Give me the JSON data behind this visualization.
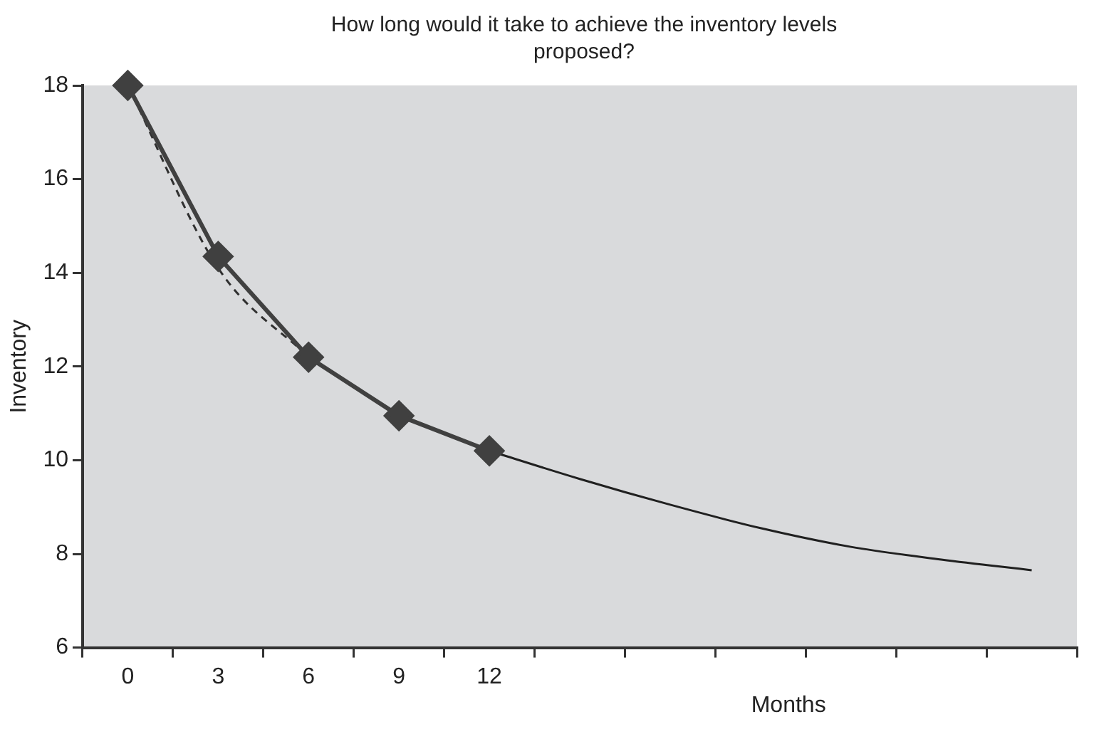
{
  "chart_data": {
    "type": "line",
    "title": "How long would it take to achieve the inventory levels proposed?",
    "xlabel": "Months",
    "ylabel": "Inventory",
    "categories": [
      "0",
      "3",
      "6",
      "9",
      "12",
      null,
      null,
      null,
      null,
      null,
      null
    ],
    "series": [
      {
        "color": "#404040",
        "marker": "diamond",
        "line_style": "solid",
        "values": [
          18,
          14.35,
          12.2,
          10.95,
          10.2,
          null,
          null,
          null,
          null,
          null,
          null
        ]
      },
      {
        "color": "#202020",
        "marker": "none",
        "line_style": "solid",
        "values": [
          null,
          null,
          null,
          null,
          10.2,
          9.6,
          9.05,
          8.55,
          8.15,
          7.88,
          7.65
        ]
      },
      {
        "color": "#303030",
        "marker": "none",
        "line_style": "dashed",
        "values": [
          18,
          14.1,
          12.2,
          null,
          null,
          null,
          null,
          null,
          null,
          null,
          null
        ]
      }
    ],
    "ylim": [
      6,
      18
    ],
    "yticks": [
      6,
      8,
      10,
      12,
      14,
      16,
      18
    ],
    "grid": false,
    "legend": false
  }
}
